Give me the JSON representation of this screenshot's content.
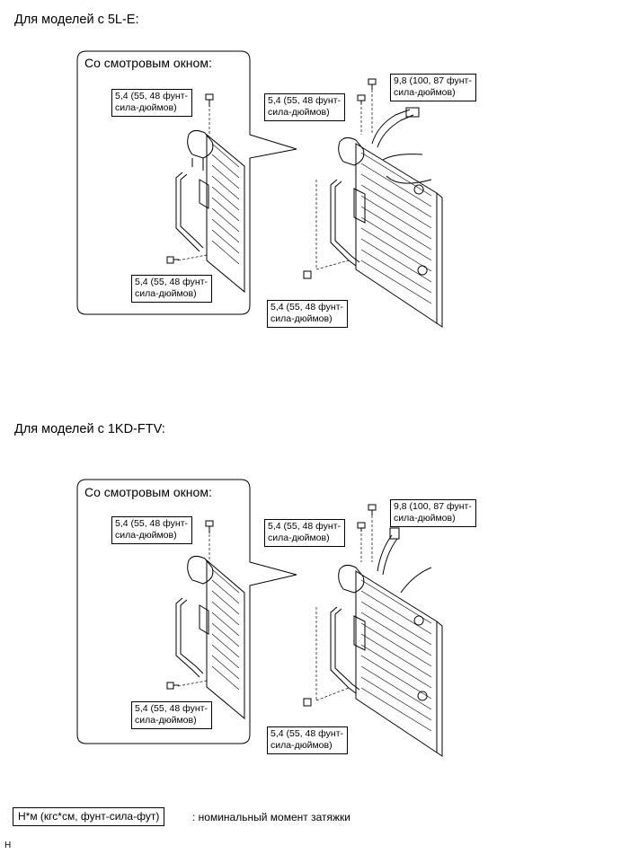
{
  "sections": [
    {
      "heading": "Для моделей с 5L-E:",
      "inset_title": "Со смотровым окном:",
      "inset_callouts": [
        {
          "line1": "5,4 (55, 48 фунт-",
          "line2": "сила-дюймов)"
        },
        {
          "line1": "5,4 (55, 48 фунт-",
          "line2": "сила-дюймов)"
        }
      ],
      "main_callouts": [
        {
          "line1": "9,8 (100, 87 фунт-",
          "line2": "сила-дюймов)"
        },
        {
          "line1": "5,4 (55, 48 фунт-",
          "line2": "сила-дюймов)"
        },
        {
          "line1": "5,4 (55, 48 фунт-",
          "line2": "сила-дюймов)"
        }
      ]
    },
    {
      "heading": "Для моделей с 1KD-FTV:",
      "inset_title": "Со смотровым окном:",
      "inset_callouts": [
        {
          "line1": "5,4 (55, 48 фунт-",
          "line2": "сила-дюймов)"
        },
        {
          "line1": "5,4 (55, 48 фунт-",
          "line2": "сила-дюймов)"
        }
      ],
      "main_callouts": [
        {
          "line1": "9,8 (100, 87 фунт-",
          "line2": "сила-дюймов)"
        },
        {
          "line1": "5,4 (55, 48 фунт-",
          "line2": "сила-дюймов)"
        },
        {
          "line1": "5,4 (55, 48 фунт-",
          "line2": "сила-дюймов)"
        }
      ]
    }
  ],
  "legend": {
    "unit_box": "Н*м (кгс*см, фунт-сила-фут)",
    "description": ": номинальный момент затяжки"
  },
  "footer": "H"
}
